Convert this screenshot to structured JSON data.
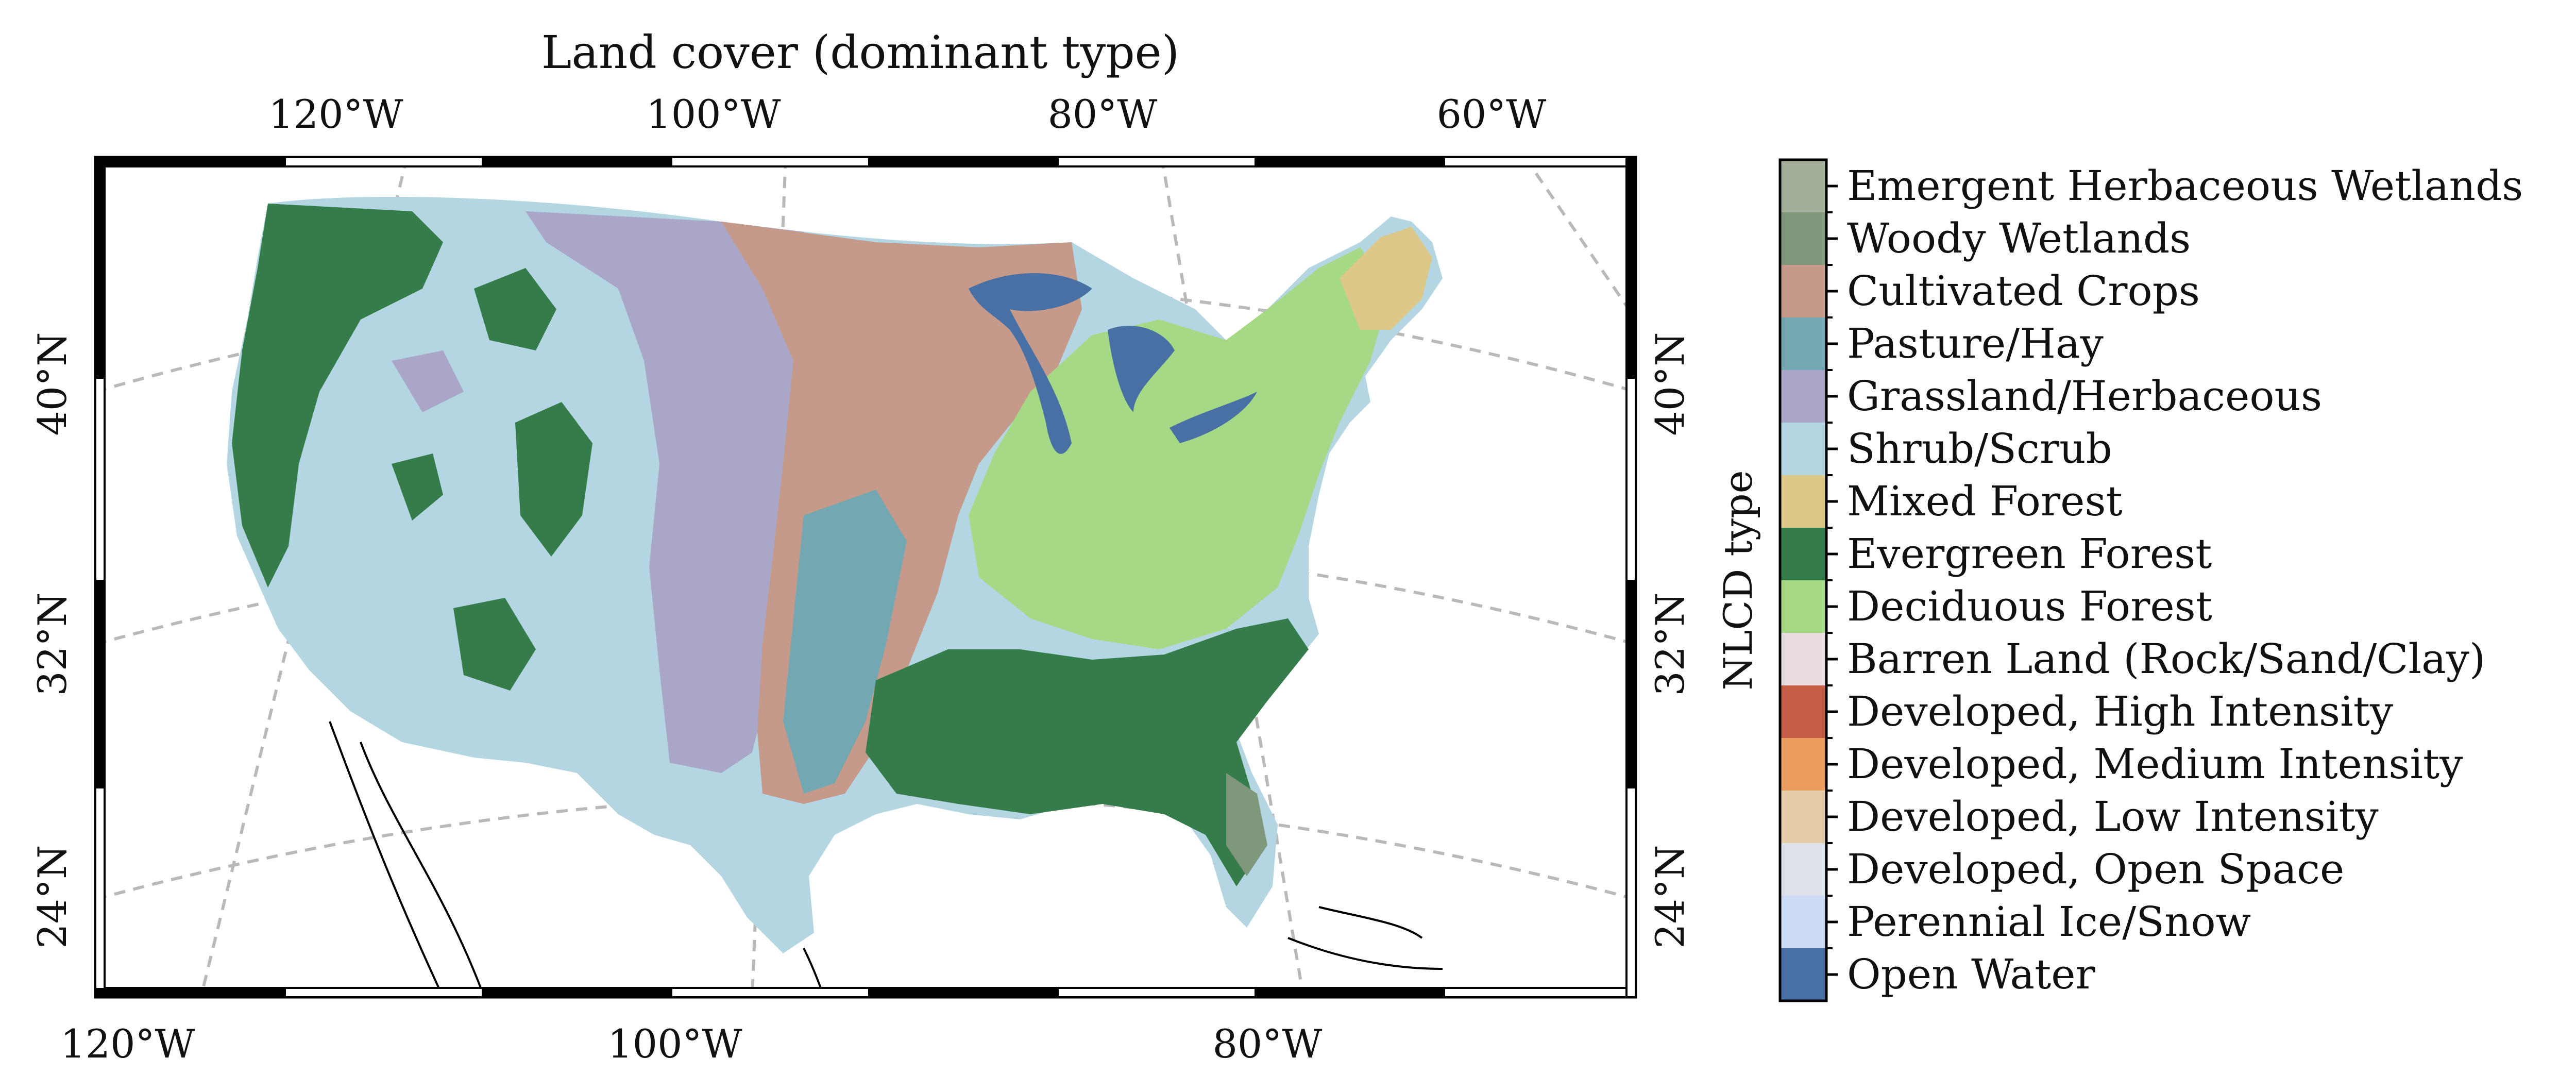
{
  "map": {
    "title": "Land cover (dominant type)",
    "top_lon_labels": [
      "120°W",
      "100°W",
      "80°W",
      "60°W"
    ],
    "bottom_lon_labels": [
      "120°W",
      "100°W",
      "80°W"
    ],
    "left_lat_labels": [
      "40°N",
      "32°N",
      "24°N"
    ],
    "right_lat_labels": [
      "40°N",
      "32°N",
      "24°N"
    ],
    "gridlines": "dashed",
    "projection_frame": "black-white checkered border"
  },
  "colorbar": {
    "title": "NLCD type",
    "classes": [
      {
        "label": "Emergent Herbaceous Wetlands",
        "color": "#a3ae9b"
      },
      {
        "label": "Woody Wetlands",
        "color": "#7f977b"
      },
      {
        "label": "Cultivated Crops",
        "color": "#c59a8a"
      },
      {
        "label": "Pasture/Hay",
        "color": "#73a7b2"
      },
      {
        "label": "Grassland/Herbaceous",
        "color": "#aaa6c7"
      },
      {
        "label": "Shrub/Scrub",
        "color": "#b3d6e2"
      },
      {
        "label": "Mixed Forest",
        "color": "#dcc889"
      },
      {
        "label": "Evergreen Forest",
        "color": "#347c49"
      },
      {
        "label": "Deciduous Forest",
        "color": "#a5d985"
      },
      {
        "label": "Barren Land (Rock/Sand/Clay)",
        "color": "#e9dcdf"
      },
      {
        "label": "Developed, High Intensity",
        "color": "#c35d45"
      },
      {
        "label": "Developed, Medium Intensity",
        "color": "#eb9c5f"
      },
      {
        "label": "Developed, Low Intensity",
        "color": "#e5cca8"
      },
      {
        "label": "Developed, Open Space",
        "color": "#dde3e8"
      },
      {
        "label": "Perennial Ice/Snow",
        "color": "#cbdcf4"
      },
      {
        "label": "Open Water",
        "color": "#4970a5"
      }
    ]
  }
}
